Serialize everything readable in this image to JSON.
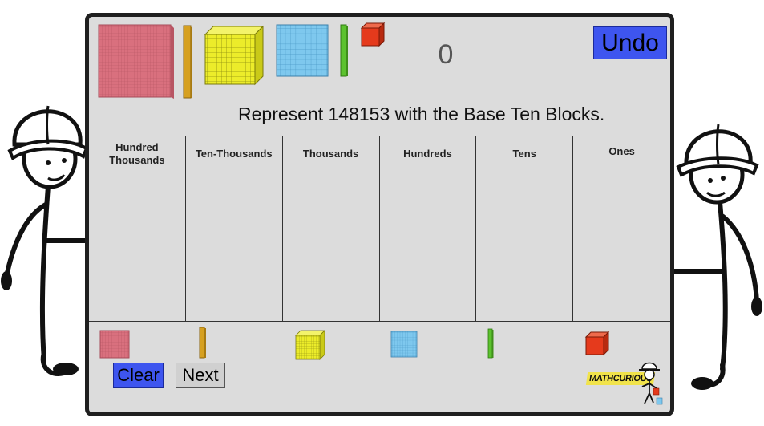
{
  "counter": {
    "value": "0"
  },
  "toolbar": {
    "undo_label": "Undo"
  },
  "prompt": {
    "text": "Represent 148153 with the Base Ten Blocks."
  },
  "place_value_chart": {
    "columns": [
      {
        "label": "Hundred\nThousands"
      },
      {
        "label": "Ten-Thousands"
      },
      {
        "label": "Thousands"
      },
      {
        "label": "Hundreds"
      },
      {
        "label": "Tens"
      },
      {
        "label": "Ones"
      }
    ]
  },
  "buttons": {
    "clear_label": "Clear",
    "next_label": "Next"
  },
  "logo": {
    "text": "MATHCURIOUS"
  },
  "colors": {
    "hundred_thousands": "#d9707e",
    "ten_thousands": "#d6a020",
    "thousands": "#ecec2a",
    "hundreds": "#7ec8ee",
    "tens": "#5cc22e",
    "ones": "#e53a1c",
    "button_blue": "#3e55ef"
  },
  "icons": {
    "hundred_thousands_block": "pink-flat-stack-icon",
    "ten_thousands_block": "orange-rod-icon",
    "thousands_block": "yellow-cube-icon",
    "hundreds_block": "blue-flat-icon",
    "tens_block": "green-rod-icon",
    "ones_block": "red-unit-cube-icon"
  }
}
